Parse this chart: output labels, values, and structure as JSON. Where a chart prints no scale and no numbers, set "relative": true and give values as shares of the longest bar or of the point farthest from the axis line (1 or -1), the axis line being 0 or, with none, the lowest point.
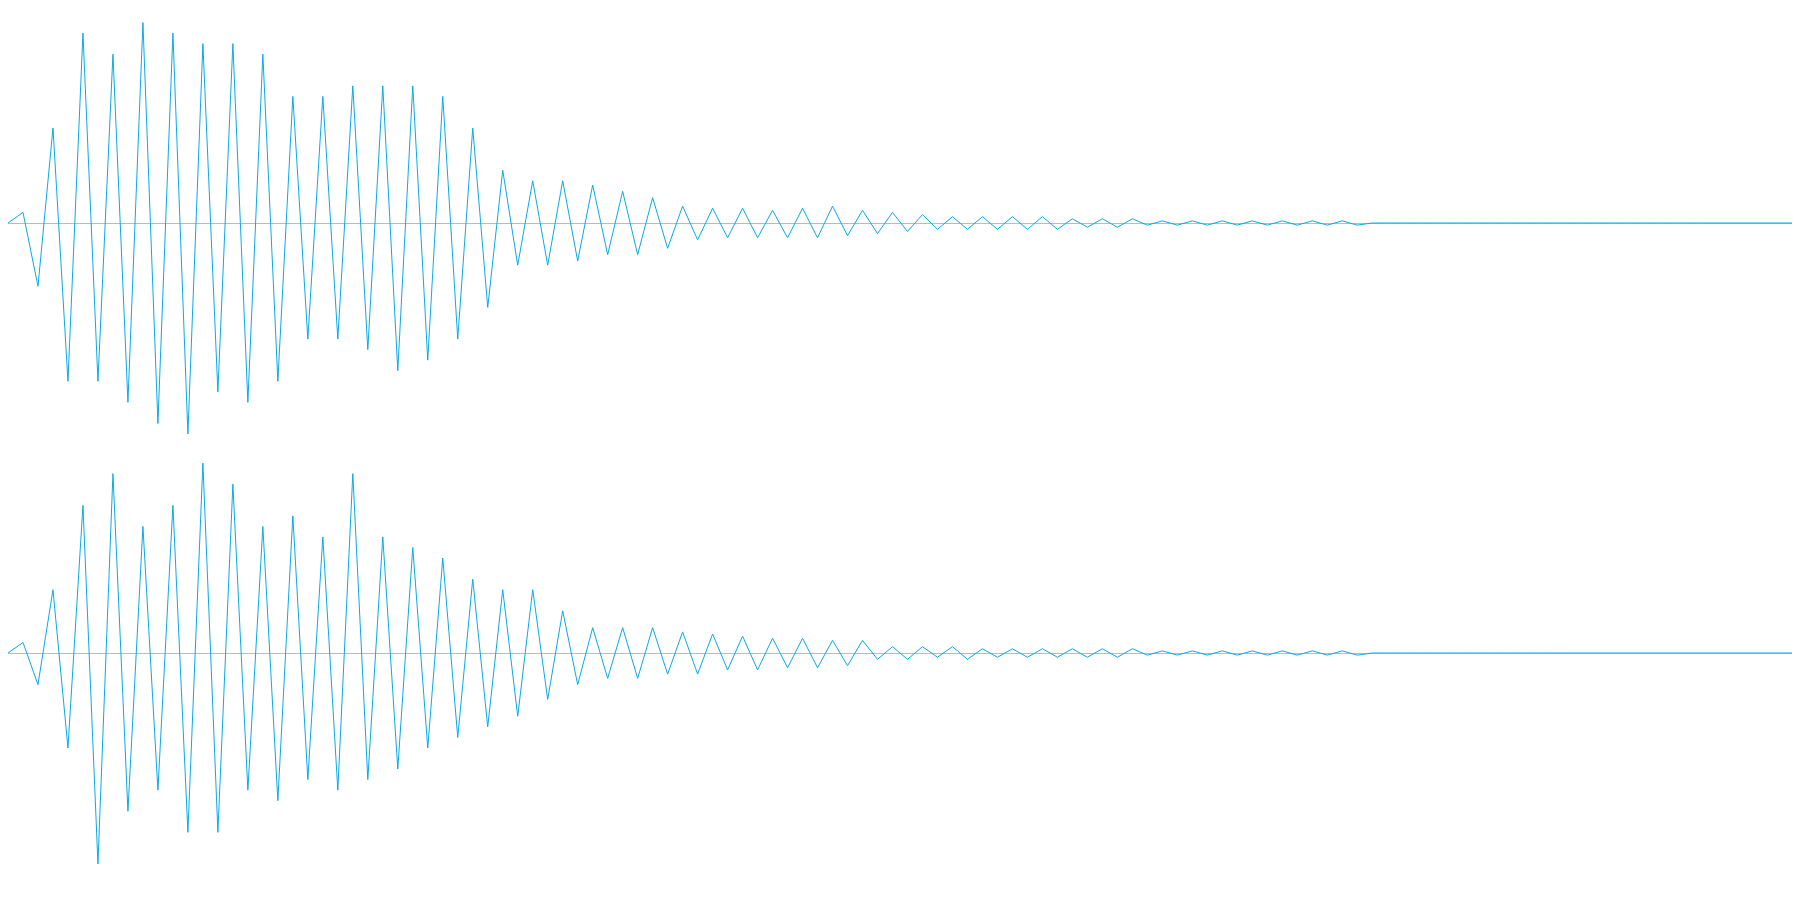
{
  "chart_data": [
    {
      "type": "line",
      "relative": true,
      "tick_labels": false,
      "marker": "none",
      "categories": [
        null,
        null,
        null,
        null,
        null,
        null,
        null,
        null,
        null,
        null,
        null,
        null,
        null,
        null,
        null,
        null,
        null,
        null,
        null,
        null,
        null,
        null,
        null,
        null,
        null,
        null,
        null,
        null,
        null,
        null,
        null,
        null,
        null,
        null,
        null,
        null,
        null,
        null,
        null,
        null,
        null,
        null,
        null,
        null,
        null,
        null,
        null,
        null,
        null,
        null,
        null,
        null,
        null,
        null,
        null,
        null,
        null,
        null,
        null,
        null,
        null,
        null,
        null,
        null,
        null,
        null,
        null,
        null,
        null,
        null,
        null,
        null,
        null,
        null,
        null,
        null,
        null,
        null,
        null,
        null,
        null,
        null,
        null,
        null,
        null,
        null,
        null,
        null,
        null,
        null,
        null,
        null,
        null,
        null,
        null,
        null,
        null,
        null,
        null,
        null,
        null,
        null,
        null,
        null,
        null,
        null,
        null,
        null,
        null,
        null,
        null,
        null,
        null,
        null,
        null,
        null,
        null,
        null,
        null,
        null
      ],
      "series": [
        {
          "color": "#0aaae6",
          "values": [
            0,
            0.05,
            -0.3,
            0.45,
            -0.75,
            0.9,
            -0.75,
            0.8,
            -0.85,
            0.95,
            -0.95,
            0.9,
            -1,
            0.85,
            -0.8,
            0.85,
            -0.85,
            0.8,
            -0.75,
            0.6,
            -0.55,
            0.6,
            -0.55,
            0.65,
            -0.6,
            0.65,
            -0.7,
            0.65,
            -0.65,
            0.6,
            -0.55,
            0.45,
            -0.4,
            0.25,
            -0.2,
            0.2,
            -0.2,
            0.2,
            -0.18,
            0.18,
            -0.15,
            0.15,
            -0.15,
            0.12,
            -0.12,
            0.08,
            -0.08,
            0.07,
            -0.07,
            0.07,
            -0.07,
            0.06,
            -0.07,
            0.07,
            -0.07,
            0.08,
            -0.06,
            0.06,
            -0.05,
            0.05,
            -0.04,
            0.04,
            -0.03,
            0.03,
            -0.03,
            0.03,
            -0.03,
            0.03,
            -0.03,
            0.03,
            -0.03,
            0.02,
            -0.02,
            0.02,
            -0.02,
            0.02,
            -0.01,
            0.01,
            -0.01,
            0.01,
            -0.01,
            0.01,
            -0.01,
            0.01,
            -0.01,
            0.01,
            -0.01,
            0.01,
            -0.01,
            0.01,
            -0.01,
            0,
            0,
            0,
            0,
            0,
            0,
            0,
            0,
            0,
            0,
            0,
            0,
            0,
            0,
            0,
            0,
            0,
            0,
            0,
            0,
            0,
            0,
            0,
            0,
            0,
            0,
            0,
            0,
            0
          ]
        }
      ]
    },
    {
      "type": "line",
      "relative": true,
      "tick_labels": false,
      "marker": "none",
      "categories": [
        null,
        null,
        null,
        null,
        null,
        null,
        null,
        null,
        null,
        null,
        null,
        null,
        null,
        null,
        null,
        null,
        null,
        null,
        null,
        null,
        null,
        null,
        null,
        null,
        null,
        null,
        null,
        null,
        null,
        null,
        null,
        null,
        null,
        null,
        null,
        null,
        null,
        null,
        null,
        null,
        null,
        null,
        null,
        null,
        null,
        null,
        null,
        null,
        null,
        null,
        null,
        null,
        null,
        null,
        null,
        null,
        null,
        null,
        null,
        null,
        null,
        null,
        null,
        null,
        null,
        null,
        null,
        null,
        null,
        null,
        null,
        null,
        null,
        null,
        null,
        null,
        null,
        null,
        null,
        null,
        null,
        null,
        null,
        null,
        null,
        null,
        null,
        null,
        null,
        null,
        null,
        null,
        null,
        null,
        null,
        null,
        null,
        null,
        null,
        null,
        null,
        null,
        null,
        null,
        null,
        null,
        null,
        null,
        null,
        null,
        null,
        null,
        null,
        null,
        null,
        null,
        null,
        null,
        null,
        null
      ],
      "series": [
        {
          "color": "#0aaae6",
          "values": [
            0,
            0.05,
            -0.15,
            0.3,
            -0.45,
            0.7,
            -1,
            0.85,
            -0.75,
            0.6,
            -0.65,
            0.7,
            -0.85,
            0.9,
            -0.85,
            0.8,
            -0.65,
            0.6,
            -0.7,
            0.65,
            -0.6,
            0.55,
            -0.65,
            0.85,
            -0.6,
            0.55,
            -0.55,
            0.5,
            -0.45,
            0.45,
            -0.4,
            0.35,
            -0.35,
            0.3,
            -0.3,
            0.3,
            -0.22,
            0.2,
            -0.15,
            0.12,
            -0.12,
            0.12,
            -0.12,
            0.12,
            -0.1,
            0.1,
            -0.1,
            0.09,
            -0.08,
            0.08,
            -0.08,
            0.07,
            -0.07,
            0.07,
            -0.07,
            0.06,
            -0.06,
            0.06,
            -0.03,
            0.03,
            -0.03,
            0.03,
            -0.02,
            0.03,
            -0.03,
            0.02,
            -0.02,
            0.02,
            -0.02,
            0.02,
            -0.02,
            0.02,
            -0.02,
            0.02,
            -0.02,
            0.02,
            -0.01,
            0.01,
            -0.01,
            0.01,
            -0.01,
            0.01,
            -0.01,
            0.01,
            -0.01,
            0.01,
            -0.01,
            0.01,
            -0.01,
            0.01,
            -0.01,
            0,
            0,
            0,
            0,
            0,
            0,
            0,
            0,
            0,
            0,
            0,
            0,
            0,
            0,
            0,
            0,
            0,
            0,
            0,
            0,
            0,
            0,
            0,
            0,
            0,
            0,
            0,
            0,
            0
          ]
        }
      ]
    }
  ]
}
